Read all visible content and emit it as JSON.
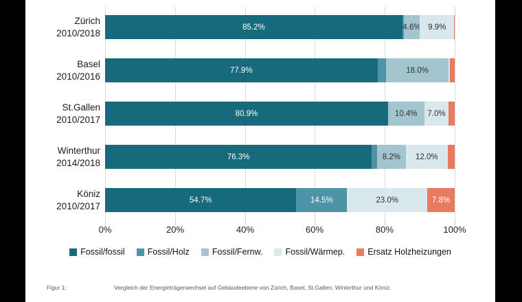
{
  "chart_data": {
    "type": "bar",
    "stacked": true,
    "orientation": "horizontal",
    "title": "",
    "xlabel": "",
    "ylabel": "",
    "xlim": [
      0,
      100
    ],
    "x_ticks": [
      "0%",
      "20%",
      "40%",
      "60%",
      "80%",
      "100%"
    ],
    "grid": true,
    "legend_position": "bottom",
    "categories": [
      {
        "city": "Zürich",
        "period": "2010/2018"
      },
      {
        "city": "Basel",
        "period": "2010/2016"
      },
      {
        "city": "St.Gallen",
        "period": "2010/2017"
      },
      {
        "city": "Winterthur",
        "period": "2014/2018"
      },
      {
        "city": "Köniz",
        "period": "2010/2017"
      }
    ],
    "series": [
      {
        "name": "Fossil/fossil",
        "color": "#166a7b",
        "label_color": "#ffffff",
        "values": [
          85.2,
          77.9,
          80.9,
          76.3,
          54.7
        ],
        "labels": [
          "85.2%",
          "77.9%",
          "80.9%",
          "76.3%",
          "54.7%"
        ]
      },
      {
        "name": "Fossil/Holz",
        "color": "#4e93a6",
        "label_color": "#ffffff",
        "values": [
          0.4,
          2.4,
          0.0,
          1.5,
          14.5
        ],
        "labels": [
          null,
          null,
          null,
          null,
          "14.5%"
        ]
      },
      {
        "name": "Fossil/Fernw.",
        "color": "#a3c6ce",
        "label_color": "#2e2e2e",
        "values": [
          4.6,
          18.0,
          10.4,
          8.2,
          0.0
        ],
        "labels": [
          "4.6%",
          "18.0%",
          "10.4%",
          "8.2%",
          null
        ]
      },
      {
        "name": "Fossil/Wärmep.",
        "color": "#d8e8ec",
        "label_color": "#2e2e2e",
        "values": [
          9.9,
          0.4,
          7.0,
          12.0,
          23.0
        ],
        "labels": [
          "9.9%",
          null,
          "7.0%",
          "12.0%",
          "23.0%"
        ]
      },
      {
        "name": "Ersatz Holzheizungen",
        "color": "#e87a61",
        "label_color": "#ffffff",
        "values": [
          0.1,
          1.3,
          1.7,
          2.0,
          7.8
        ],
        "labels": [
          null,
          null,
          null,
          null,
          "7.8%"
        ]
      }
    ]
  },
  "caption": {
    "label": "Figur 1:",
    "text": "Vergleich der Energieträgerwechsel auf Gebäudeebene von Zürich, Basel, St.Gallen, Winterthur und Köniz."
  }
}
